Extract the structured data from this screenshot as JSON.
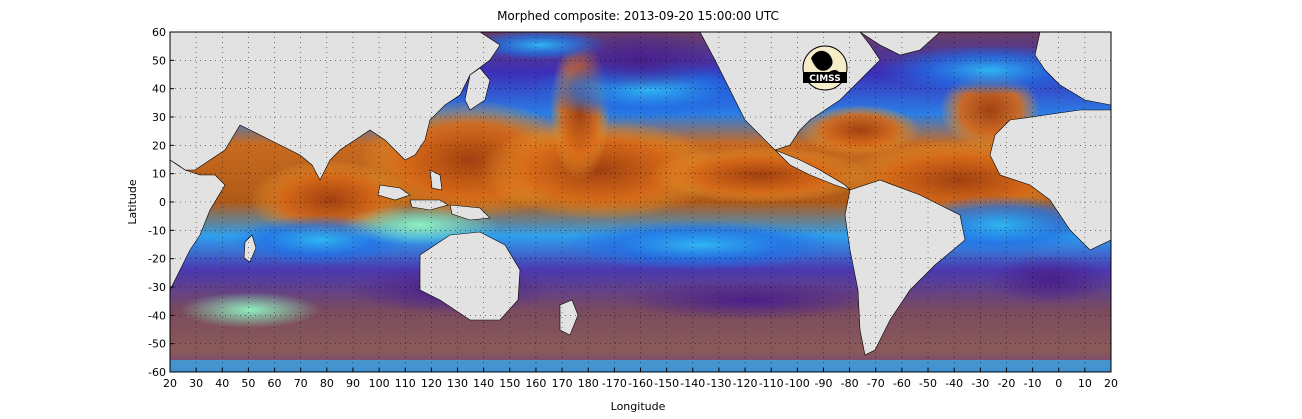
{
  "figure": {
    "title": "Morphed composite: 2013-09-20 15:00:00 UTC",
    "xlabel": "Longitude",
    "ylabel": "Latitude",
    "logo_text": "CIMSS"
  },
  "axes": {
    "x_ticks": [
      "20",
      "30",
      "40",
      "50",
      "60",
      "70",
      "80",
      "90",
      "100",
      "110",
      "120",
      "130",
      "140",
      "150",
      "160",
      "170",
      "180",
      "-170",
      "-160",
      "-150",
      "-140",
      "-130",
      "-120",
      "-110",
      "-100",
      "-90",
      "-80",
      "-70",
      "-60",
      "-50",
      "-40",
      "-30",
      "-20",
      "-10",
      "0",
      "10",
      "20"
    ],
    "y_ticks": [
      "60",
      "50",
      "40",
      "30",
      "20",
      "10",
      "0",
      "-10",
      "-20",
      "-30",
      "-40",
      "-50",
      "-60"
    ],
    "lon_range": [
      20,
      380
    ],
    "lat_range": [
      -60,
      60
    ],
    "grid": "dotted"
  },
  "colors": {
    "land": "#e2e2e2",
    "coast": "#000000",
    "palette": [
      "#7a4b5e",
      "#5a2a8a",
      "#3c2fb8",
      "#1f6fe6",
      "#2fb6f2",
      "#7ee8c8",
      "#e6e86a",
      "#f0a030",
      "#c85a10",
      "#8a3a10"
    ]
  }
}
